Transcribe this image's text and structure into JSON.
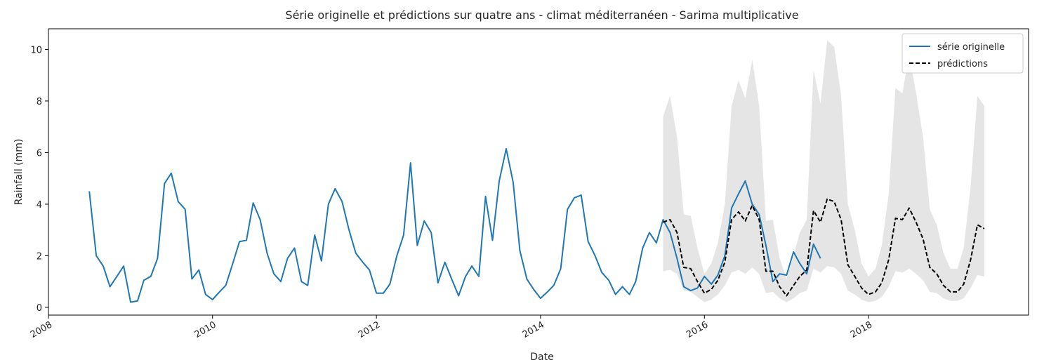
{
  "chart_data": {
    "type": "line",
    "title": "Série originelle et prédictions sur quatre ans - climat méditerranéen - Sarima multiplicative",
    "xlabel": "Date",
    "ylabel": "Rainfall (mm)",
    "xlim": [
      "2008-01-01",
      "2019-12-15"
    ],
    "ylim": [
      -0.3,
      10.8
    ],
    "x_ticks": [
      "2008",
      "2010",
      "2012",
      "2014",
      "2016",
      "2018"
    ],
    "y_ticks": [
      0,
      2,
      4,
      6,
      8,
      10
    ],
    "grid": false,
    "legend": {
      "position": "top-right"
    },
    "series": [
      {
        "name": "série originelle",
        "color": "#1f77b4",
        "style": "solid",
        "points": [
          [
            "2008-07",
            4.5
          ],
          [
            "2008-08",
            2.0
          ],
          [
            "2008-09",
            1.6
          ],
          [
            "2008-10",
            0.8
          ],
          [
            "2008-11",
            1.2
          ],
          [
            "2008-12",
            1.6
          ],
          [
            "2009-01",
            0.2
          ],
          [
            "2009-02",
            0.25
          ],
          [
            "2009-03",
            1.05
          ],
          [
            "2009-04",
            1.2
          ],
          [
            "2009-05",
            1.9
          ],
          [
            "2009-06",
            4.8
          ],
          [
            "2009-07",
            5.2
          ],
          [
            "2009-08",
            4.1
          ],
          [
            "2009-09",
            3.8
          ],
          [
            "2009-10",
            1.1
          ],
          [
            "2009-11",
            1.45
          ],
          [
            "2009-12",
            0.5
          ],
          [
            "2010-01",
            0.3
          ],
          [
            "2010-02",
            0.6
          ],
          [
            "2010-03",
            0.85
          ],
          [
            "2010-04",
            1.7
          ],
          [
            "2010-05",
            2.55
          ],
          [
            "2010-06",
            2.6
          ],
          [
            "2010-07",
            4.05
          ],
          [
            "2010-08",
            3.4
          ],
          [
            "2010-09",
            2.1
          ],
          [
            "2010-10",
            1.3
          ],
          [
            "2010-11",
            1.0
          ],
          [
            "2010-12",
            1.9
          ],
          [
            "2011-01",
            2.3
          ],
          [
            "2011-02",
            1.0
          ],
          [
            "2011-03",
            0.85
          ],
          [
            "2011-04",
            2.8
          ],
          [
            "2011-05",
            1.8
          ],
          [
            "2011-06",
            4.0
          ],
          [
            "2011-07",
            4.6
          ],
          [
            "2011-08",
            4.1
          ],
          [
            "2011-09",
            3.0
          ],
          [
            "2011-10",
            2.1
          ],
          [
            "2011-11",
            1.75
          ],
          [
            "2011-12",
            1.45
          ],
          [
            "2012-01",
            0.55
          ],
          [
            "2012-02",
            0.55
          ],
          [
            "2012-03",
            0.9
          ],
          [
            "2012-04",
            2.0
          ],
          [
            "2012-05",
            2.8
          ],
          [
            "2012-06",
            5.6
          ],
          [
            "2012-07",
            2.4
          ],
          [
            "2012-08",
            3.35
          ],
          [
            "2012-09",
            2.9
          ],
          [
            "2012-10",
            0.95
          ],
          [
            "2012-11",
            1.75
          ],
          [
            "2012-12",
            1.1
          ],
          [
            "2013-01",
            0.45
          ],
          [
            "2013-02",
            1.2
          ],
          [
            "2013-03",
            1.6
          ],
          [
            "2013-04",
            1.2
          ],
          [
            "2013-05",
            4.3
          ],
          [
            "2013-06",
            2.6
          ],
          [
            "2013-07",
            4.9
          ],
          [
            "2013-08",
            6.15
          ],
          [
            "2013-09",
            4.85
          ],
          [
            "2013-10",
            2.2
          ],
          [
            "2013-11",
            1.1
          ],
          [
            "2013-12",
            0.7
          ],
          [
            "2014-01",
            0.35
          ],
          [
            "2014-02",
            0.6
          ],
          [
            "2014-03",
            0.85
          ],
          [
            "2014-04",
            1.5
          ],
          [
            "2014-05",
            3.8
          ],
          [
            "2014-06",
            4.25
          ],
          [
            "2014-07",
            4.35
          ],
          [
            "2014-08",
            2.55
          ],
          [
            "2014-09",
            2.0
          ],
          [
            "2014-10",
            1.35
          ],
          [
            "2014-11",
            1.05
          ],
          [
            "2014-12",
            0.5
          ],
          [
            "2015-01",
            0.8
          ],
          [
            "2015-02",
            0.5
          ],
          [
            "2015-03",
            1.0
          ],
          [
            "2015-04",
            2.3
          ],
          [
            "2015-05",
            2.9
          ],
          [
            "2015-06",
            2.5
          ],
          [
            "2015-07",
            3.4
          ],
          [
            "2015-08",
            2.9
          ],
          [
            "2015-09",
            1.9
          ],
          [
            "2015-10",
            0.8
          ],
          [
            "2015-11",
            0.65
          ],
          [
            "2015-12",
            0.75
          ],
          [
            "2016-01",
            1.2
          ],
          [
            "2016-02",
            0.9
          ],
          [
            "2016-03",
            1.25
          ],
          [
            "2016-04",
            2.0
          ],
          [
            "2016-05",
            3.85
          ],
          [
            "2016-06",
            4.4
          ],
          [
            "2016-07",
            4.9
          ],
          [
            "2016-08",
            4.0
          ],
          [
            "2016-09",
            3.6
          ],
          [
            "2016-10",
            2.4
          ],
          [
            "2016-11",
            1.0
          ],
          [
            "2016-12",
            1.3
          ],
          [
            "2017-01",
            1.25
          ],
          [
            "2017-02",
            2.15
          ],
          [
            "2017-03",
            1.7
          ],
          [
            "2017-04",
            1.3
          ],
          [
            "2017-05",
            2.45
          ],
          [
            "2017-06",
            1.9
          ]
        ]
      },
      {
        "name": "prédictions",
        "color": "#000000",
        "style": "dashed",
        "points": [
          [
            "2015-07",
            3.3
          ],
          [
            "2015-08",
            3.4
          ],
          [
            "2015-09",
            2.9
          ],
          [
            "2015-10",
            1.55
          ],
          [
            "2015-11",
            1.5
          ],
          [
            "2015-12",
            1.0
          ],
          [
            "2016-01",
            0.55
          ],
          [
            "2016-02",
            0.7
          ],
          [
            "2016-03",
            1.05
          ],
          [
            "2016-04",
            1.75
          ],
          [
            "2016-05",
            3.4
          ],
          [
            "2016-06",
            3.7
          ],
          [
            "2016-07",
            3.35
          ],
          [
            "2016-08",
            3.95
          ],
          [
            "2016-09",
            3.4
          ],
          [
            "2016-10",
            1.4
          ],
          [
            "2016-11",
            1.4
          ],
          [
            "2016-12",
            0.8
          ],
          [
            "2017-01",
            0.45
          ],
          [
            "2017-02",
            0.85
          ],
          [
            "2017-03",
            1.2
          ],
          [
            "2017-04",
            1.45
          ],
          [
            "2017-05",
            3.75
          ],
          [
            "2017-06",
            3.3
          ],
          [
            "2017-07",
            4.2
          ],
          [
            "2017-08",
            4.1
          ],
          [
            "2017-09",
            3.4
          ],
          [
            "2017-10",
            1.65
          ],
          [
            "2017-11",
            1.2
          ],
          [
            "2017-12",
            0.75
          ],
          [
            "2018-01",
            0.5
          ],
          [
            "2018-02",
            0.6
          ],
          [
            "2018-03",
            0.95
          ],
          [
            "2018-04",
            1.85
          ],
          [
            "2018-05",
            3.45
          ],
          [
            "2018-06",
            3.4
          ],
          [
            "2018-07",
            3.85
          ],
          [
            "2018-08",
            3.3
          ],
          [
            "2018-09",
            2.65
          ],
          [
            "2018-10",
            1.55
          ],
          [
            "2018-11",
            1.3
          ],
          [
            "2018-12",
            0.85
          ],
          [
            "2019-01",
            0.6
          ],
          [
            "2019-02",
            0.6
          ],
          [
            "2019-03",
            0.9
          ],
          [
            "2019-04",
            1.85
          ],
          [
            "2019-05",
            3.2
          ],
          [
            "2019-06",
            3.05
          ]
        ]
      }
    ],
    "confidence_band": {
      "color": "#d3d3d3",
      "lower": [
        1.4,
        1.45,
        1.3,
        0.65,
        0.6,
        0.4,
        0.2,
        0.3,
        0.5,
        0.85,
        1.35,
        1.45,
        1.3,
        1.55,
        1.3,
        0.55,
        0.6,
        0.35,
        0.2,
        0.35,
        0.55,
        0.65,
        1.5,
        1.35,
        1.6,
        1.55,
        1.3,
        0.65,
        0.5,
        0.3,
        0.2,
        0.25,
        0.4,
        0.8,
        1.4,
        1.35,
        1.5,
        1.3,
        1.05,
        0.6,
        0.55,
        0.35,
        0.25,
        0.25,
        0.35,
        0.75,
        1.25,
        1.2
      ],
      "upper": [
        7.4,
        8.2,
        6.6,
        3.6,
        3.55,
        2.3,
        1.3,
        1.7,
        2.5,
        4.0,
        7.8,
        8.8,
        8.1,
        9.6,
        7.8,
        3.35,
        3.4,
        1.9,
        1.1,
        2.0,
        2.9,
        3.4,
        9.2,
        7.9,
        10.35,
        10.1,
        8.2,
        4.0,
        3.0,
        1.7,
        1.2,
        1.5,
        2.4,
        4.4,
        8.5,
        8.3,
        9.8,
        8.3,
        6.6,
        3.8,
        3.2,
        2.1,
        1.5,
        1.5,
        2.3,
        4.7,
        8.2,
        7.8
      ]
    }
  }
}
